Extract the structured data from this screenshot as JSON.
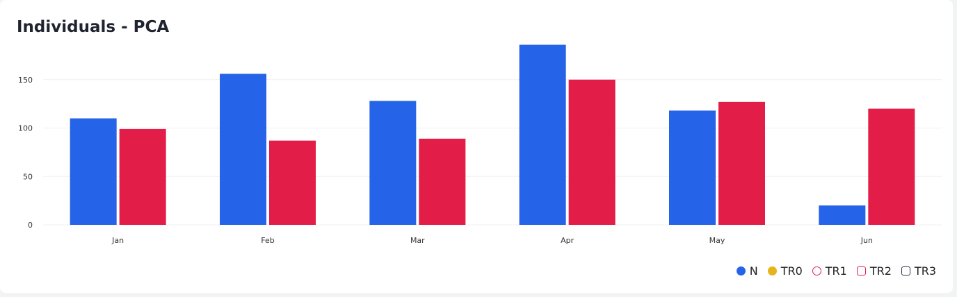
{
  "chart_data": {
    "type": "bar",
    "title": "Individuals - PCA",
    "xlabel": "",
    "ylabel": "",
    "categories": [
      "Jan",
      "Feb",
      "Mar",
      "Apr",
      "May",
      "Jun"
    ],
    "series": [
      {
        "name": "N",
        "color": "#2563e8",
        "values": [
          110,
          156,
          128,
          186,
          118,
          20
        ]
      },
      {
        "name": "TR2",
        "color": "#e11d48",
        "values": [
          99,
          87,
          89,
          150,
          127,
          120
        ]
      }
    ],
    "ylim": [
      0,
      200
    ],
    "yticks": [
      0,
      50,
      100,
      150
    ],
    "grid": true,
    "legend_position": "bottom-right",
    "legend": [
      {
        "label": "N",
        "shape": "circle",
        "filled": true,
        "color": "#2563e8"
      },
      {
        "label": "TR0",
        "shape": "circle",
        "filled": true,
        "color": "#e5b418"
      },
      {
        "label": "TR1",
        "shape": "circle",
        "filled": false,
        "color": "#e11d48"
      },
      {
        "label": "TR2",
        "shape": "square",
        "filled": false,
        "color": "#e11d48"
      },
      {
        "label": "TR3",
        "shape": "square",
        "filled": false,
        "color": "#2a3342"
      }
    ]
  }
}
